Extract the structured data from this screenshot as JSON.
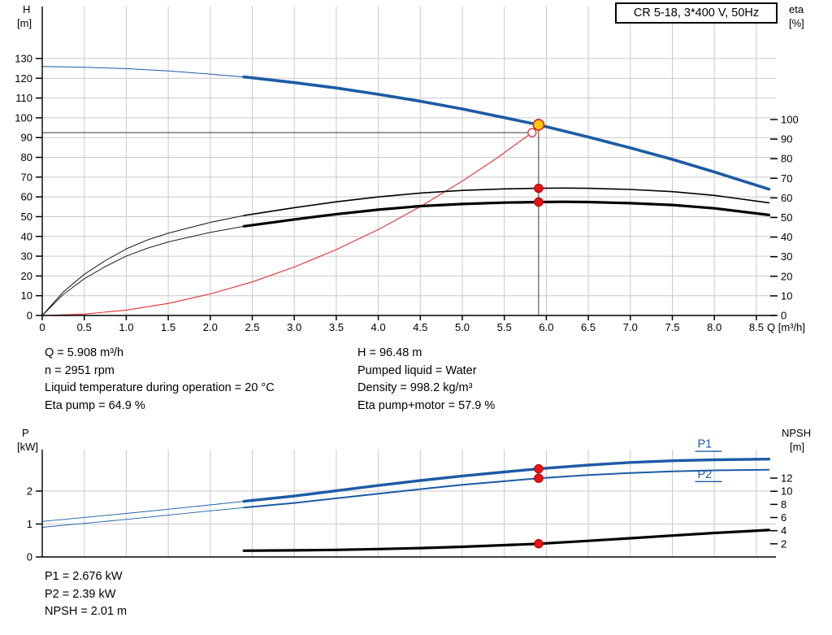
{
  "title_box": "CR 5-18, 3*400 V, 50Hz",
  "info_top": {
    "left": [
      "Q = 5.908 m³/h",
      "n = 2951 rpm",
      "Liquid temperature during operation = 20 °C",
      "Eta pump = 64.9 %"
    ],
    "right": [
      "H = 96.48 m",
      "Pumped liquid = Water",
      "Density = 998.2 kg/m³",
      "Eta pump+motor = 57.9 %"
    ]
  },
  "info_bottom": [
    "P1 = 2.676 kW",
    "P2 = 2.39 kW",
    "NPSH = 2.01 m"
  ],
  "colors": {
    "curve_blue": "#1c5ba6",
    "curve_black": "#000000",
    "curve_red": "#e03030",
    "dot_red": "#e81313",
    "dot_ring": "#b00000",
    "duty_yellow": "#ffcc00",
    "guide": "#3a3a3a",
    "grid": "#c9c9c9"
  },
  "chart_data": [
    {
      "id": "qh",
      "type": "line",
      "title": "CR 5-18, 3*400 V, 50Hz",
      "x": {
        "min": 0,
        "max": 8.73,
        "tick": 0.5,
        "tick_max": 8.5,
        "label": "Q [m³/h]",
        "decimals": 1,
        "show_labels": true
      },
      "y_left": {
        "min": 0,
        "max": 156,
        "tick": 10,
        "tick_max": 130,
        "label_lines": [
          "H",
          "[m]"
        ],
        "decimals": 0
      },
      "y_right": {
        "min": 0,
        "max": 158,
        "tick": 10,
        "tick_min": 0,
        "tick_max": 100,
        "label_lines": [
          "eta",
          "[%]"
        ],
        "decimals": 0
      },
      "series": [
        {
          "name": "system-curve",
          "axis": "left",
          "color": "#e03030",
          "width": 1.1,
          "points": [
            [
              0,
              0
            ],
            [
              0.5,
              0.7
            ],
            [
              1,
              2.7
            ],
            [
              1.5,
              6.1
            ],
            [
              2,
              10.9
            ],
            [
              2.5,
              17
            ],
            [
              3,
              24.5
            ],
            [
              3.5,
              33.3
            ],
            [
              4,
              43.5
            ],
            [
              4.5,
              55.1
            ],
            [
              5,
              68
            ],
            [
              5.4,
              79.3
            ],
            [
              5.83,
              92.5
            ]
          ]
        },
        {
          "name": "eta-pump",
          "axis": "right",
          "color": "#000000",
          "width": 1.6,
          "thin_width": 0.9,
          "thick_from": 2.4,
          "points": [
            [
              0,
              0
            ],
            [
              0.25,
              12
            ],
            [
              0.5,
              21
            ],
            [
              0.75,
              28
            ],
            [
              1,
              34
            ],
            [
              1.25,
              38.5
            ],
            [
              1.5,
              42
            ],
            [
              2,
              47.5
            ],
            [
              2.4,
              51
            ],
            [
              3,
              55
            ],
            [
              3.5,
              58
            ],
            [
              4,
              60.5
            ],
            [
              4.5,
              62.5
            ],
            [
              5,
              63.8
            ],
            [
              5.5,
              64.6
            ],
            [
              5.908,
              64.9
            ],
            [
              6.2,
              65
            ],
            [
              6.5,
              64.9
            ],
            [
              7,
              64.3
            ],
            [
              7.5,
              63.2
            ],
            [
              8,
              61.3
            ],
            [
              8.65,
              57.5
            ]
          ]
        },
        {
          "name": "eta-pump-motor",
          "axis": "right",
          "color": "#000000",
          "width": 3.2,
          "thin_width": 0.9,
          "thick_from": 2.4,
          "points": [
            [
              0,
              0
            ],
            [
              0.25,
              10.7
            ],
            [
              0.5,
              18.7
            ],
            [
              0.75,
              25
            ],
            [
              1,
              30.3
            ],
            [
              1.25,
              34.3
            ],
            [
              1.5,
              37.5
            ],
            [
              2,
              42.4
            ],
            [
              2.4,
              45.5
            ],
            [
              3,
              49
            ],
            [
              3.5,
              51.7
            ],
            [
              4,
              54
            ],
            [
              4.5,
              55.8
            ],
            [
              5,
              56.9
            ],
            [
              5.5,
              57.6
            ],
            [
              5.908,
              57.9
            ],
            [
              6.2,
              58
            ],
            [
              6.5,
              57.9
            ],
            [
              7,
              57.3
            ],
            [
              7.5,
              56.4
            ],
            [
              8,
              54.7
            ],
            [
              8.65,
              51.3
            ]
          ]
        },
        {
          "name": "head",
          "axis": "left",
          "color": "#1c5ba6",
          "width": 3.6,
          "thin_width": 1,
          "thick_from": 2.4,
          "points": [
            [
              0,
              126
            ],
            [
              0.5,
              125.6
            ],
            [
              1,
              124.9
            ],
            [
              1.5,
              123.7
            ],
            [
              2,
              122.1
            ],
            [
              2.4,
              120.7
            ],
            [
              3,
              117.8
            ],
            [
              3.5,
              115.1
            ],
            [
              4,
              111.9
            ],
            [
              4.5,
              108.4
            ],
            [
              5,
              104.5
            ],
            [
              5.5,
              100.1
            ],
            [
              5.908,
              96.48
            ],
            [
              6.5,
              90.3
            ],
            [
              7,
              84.8
            ],
            [
              7.5,
              79
            ],
            [
              8,
              72.6
            ],
            [
              8.65,
              63.9
            ]
          ]
        }
      ],
      "guides": [
        {
          "type": "v",
          "x": 5.908,
          "y1": 0,
          "y2": 96.48,
          "axis": "left",
          "color": "#3a3a3a",
          "width": 1
        },
        {
          "type": "h",
          "y": 92.5,
          "x1": 0,
          "x2": 5.83,
          "axis": "left",
          "color": "#3a3a3a",
          "width": 1
        }
      ],
      "markers": [
        {
          "name": "requested-point",
          "x": 5.83,
          "y": 92.5,
          "axis": "left",
          "r": 5,
          "fill": "#ffffff",
          "stroke": "#e03030",
          "stroke_width": 1.3,
          "interactable": false
        },
        {
          "name": "eta-pump-point",
          "x": 5.908,
          "y": 64.9,
          "axis": "right",
          "r": 5.2,
          "fill": "#e81313",
          "stroke": "#b00000",
          "stroke_width": 1,
          "interactable": false
        },
        {
          "name": "eta-pump-motor-point",
          "x": 5.908,
          "y": 57.9,
          "axis": "right",
          "r": 5.2,
          "fill": "#e81313",
          "stroke": "#b00000",
          "stroke_width": 1,
          "interactable": false
        },
        {
          "name": "duty-point",
          "x": 5.908,
          "y": 96.48,
          "axis": "left",
          "r": 6.5,
          "fill": "#ffcc00",
          "stroke": "#d02020",
          "stroke_width": 1.6,
          "interactable": true
        }
      ]
    },
    {
      "id": "power",
      "type": "line",
      "x": {
        "min": 0,
        "max": 8.73,
        "tick": 0.5,
        "tick_max": 8.5,
        "label": "",
        "decimals": 1,
        "show_labels": false,
        "show_ticks": false
      },
      "y_left": {
        "min": 0,
        "max": 3.26,
        "tick": 1,
        "tick_max": 2,
        "label_lines": [
          "P",
          "[kW]"
        ],
        "decimals": 0
      },
      "y_right": {
        "min": 0,
        "max": 16.3,
        "tick": 2,
        "tick_min": 2,
        "tick_max": 12,
        "label_lines": [
          "NPSH",
          "[m]"
        ],
        "decimals": 0
      },
      "series": [
        {
          "name": "npsh",
          "axis": "right",
          "color": "#000000",
          "width": 3.2,
          "points": [
            [
              2.4,
              0.95
            ],
            [
              3,
              1.0
            ],
            [
              3.5,
              1.08
            ],
            [
              4,
              1.2
            ],
            [
              4.5,
              1.35
            ],
            [
              5,
              1.55
            ],
            [
              5.5,
              1.8
            ],
            [
              5.908,
              2.01
            ],
            [
              6.5,
              2.45
            ],
            [
              7,
              2.85
            ],
            [
              7.5,
              3.25
            ],
            [
              8,
              3.65
            ],
            [
              8.65,
              4.1
            ]
          ]
        },
        {
          "name": "p2",
          "axis": "left",
          "color": "#1c5ba6",
          "width": 2,
          "thin_width": 0.9,
          "thick_from": 2.4,
          "points": [
            [
              0,
              0.9
            ],
            [
              0.5,
              1.02
            ],
            [
              1,
              1.14
            ],
            [
              1.5,
              1.27
            ],
            [
              2,
              1.4
            ],
            [
              2.4,
              1.5
            ],
            [
              3,
              1.64
            ],
            [
              3.5,
              1.78
            ],
            [
              4,
              1.92
            ],
            [
              4.5,
              2.06
            ],
            [
              5,
              2.19
            ],
            [
              5.5,
              2.3
            ],
            [
              5.908,
              2.39
            ],
            [
              6.5,
              2.49
            ],
            [
              7,
              2.55
            ],
            [
              7.5,
              2.6
            ],
            [
              8,
              2.63
            ],
            [
              8.65,
              2.65
            ]
          ]
        },
        {
          "name": "p1",
          "axis": "left",
          "color": "#1c5ba6",
          "width": 3.4,
          "thin_width": 0.9,
          "thick_from": 2.4,
          "points": [
            [
              0,
              1.08
            ],
            [
              0.5,
              1.2
            ],
            [
              1,
              1.32
            ],
            [
              1.5,
              1.45
            ],
            [
              2,
              1.58
            ],
            [
              2.4,
              1.69
            ],
            [
              3,
              1.85
            ],
            [
              3.5,
              2.01
            ],
            [
              4,
              2.17
            ],
            [
              4.5,
              2.32
            ],
            [
              5,
              2.46
            ],
            [
              5.5,
              2.58
            ],
            [
              5.908,
              2.676
            ],
            [
              6.5,
              2.79
            ],
            [
              7,
              2.87
            ],
            [
              7.5,
              2.92
            ],
            [
              8,
              2.95
            ],
            [
              8.65,
              2.97
            ]
          ]
        }
      ],
      "series_labels": [
        {
          "text": "P1",
          "x": 7.8,
          "y": 3.32,
          "axis": "left",
          "color": "#1c5ba6"
        },
        {
          "text": "P2",
          "x": 7.8,
          "y": 2.4,
          "axis": "left",
          "color": "#1c5ba6"
        }
      ],
      "markers": [
        {
          "name": "p1-point",
          "x": 5.908,
          "y": 2.676,
          "axis": "left",
          "r": 5.2,
          "fill": "#e81313",
          "stroke": "#b00000",
          "stroke_width": 1,
          "interactable": false
        },
        {
          "name": "p2-point",
          "x": 5.908,
          "y": 2.39,
          "axis": "left",
          "r": 5.2,
          "fill": "#e81313",
          "stroke": "#b00000",
          "stroke_width": 1,
          "interactable": false
        },
        {
          "name": "npsh-point",
          "x": 5.908,
          "y": 2.01,
          "axis": "right",
          "r": 5.2,
          "fill": "#e81313",
          "stroke": "#b00000",
          "stroke_width": 1,
          "interactable": false
        }
      ]
    }
  ]
}
